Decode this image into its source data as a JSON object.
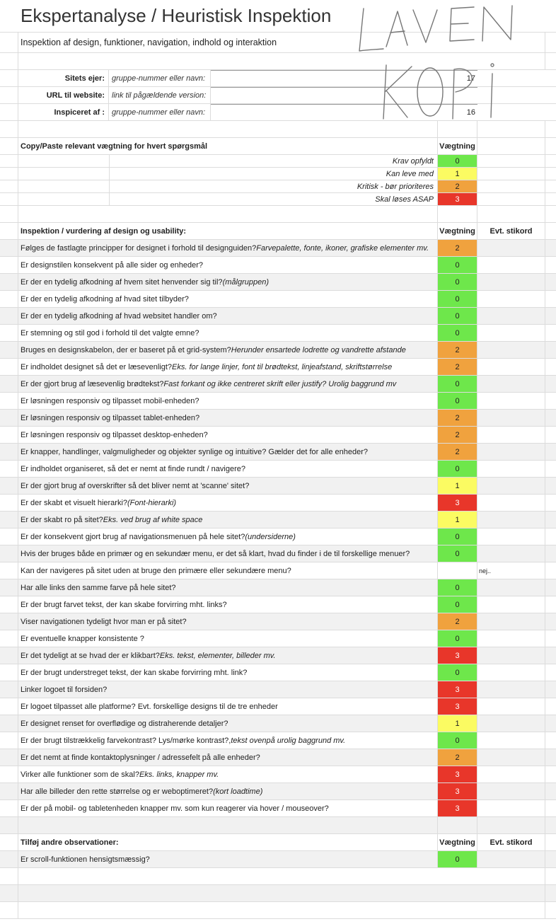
{
  "title": "Ekspertanalyse / Heuristisk Inspektion",
  "subtitle": "Inspektion af design, funktioner, navigation, indhold og interaktion",
  "handwriting_text": "LAV EN KOPI",
  "info": [
    {
      "label": "Sitets ejer:",
      "hint": "gruppe-nummer eller navn:",
      "value": "17"
    },
    {
      "label": "URL til website:",
      "hint": "link til pågældende version:",
      "value": ""
    },
    {
      "label": "Inspiceret af :",
      "hint": "gruppe-nummer eller navn:",
      "value": "16"
    }
  ],
  "weights_header": {
    "label": "Copy/Paste relevant vægtning  for hvert spørgsmål",
    "col": "Vægtning"
  },
  "legend": [
    {
      "label": "Krav opfyldt",
      "value": "0"
    },
    {
      "label": "Kan leve med",
      "value": "1"
    },
    {
      "label": "Kritisk - bør prioriteres",
      "value": "2"
    },
    {
      "label": "Skal løses ASAP",
      "value": "3"
    }
  ],
  "inspection_header": {
    "label": "Inspektion / vurdering af design og usability:",
    "col_weight": "Vægtning",
    "col_note": "Evt. stikord"
  },
  "questions": [
    {
      "text": "Følges de fastlagte principper for designet i forhold til designguiden?",
      "italic": "Farvepalette, fonte, ikoner, grafiske elementer mv.",
      "score": "2",
      "note": ""
    },
    {
      "text": "Er designstilen konsekvent på alle sider og enheder?",
      "italic": "",
      "score": "0",
      "note": ""
    },
    {
      "text": "Er der en tydelig afkodning af hvem sitet henvender sig til?",
      "italic": "(målgruppen)",
      "score": "0",
      "note": ""
    },
    {
      "text": "Er der en tydelig afkodning af hvad sitet tilbyder?",
      "italic": "",
      "score": "0",
      "note": ""
    },
    {
      "text": "Er der en tydelig afkodning af hvad websitet handler om?",
      "italic": "",
      "score": "0",
      "note": ""
    },
    {
      "text": "Er stemning og stil god i forhold til det valgte emne?",
      "italic": "",
      "score": "0",
      "note": ""
    },
    {
      "text": "Bruges en designskabelon, der er baseret på et grid-system?",
      "italic": "Herunder ensartede lodrette og vandrette afstande",
      "score": "2",
      "note": ""
    },
    {
      "text": "Er indholdet designet så det er læsevenligt?",
      "italic": "Eks. for lange linjer, font til brødtekst, linjeafstand, skriftstørrelse",
      "score": "2",
      "note": ""
    },
    {
      "text": "Er der gjort brug af læsevenlig brødtekst?",
      "italic": "Fast forkant og ikke centreret skrift eller justify? Urolig baggrund mv",
      "score": "0",
      "note": ""
    },
    {
      "text": "Er løsningen responsiv og tilpasset mobil-enheden?",
      "italic": "",
      "score": "0",
      "note": ""
    },
    {
      "text": "Er løsningen responsiv og tilpasset tablet-enheden?",
      "italic": "",
      "score": "2",
      "note": ""
    },
    {
      "text": "Er løsningen responsiv og tilpasset desktop-enheden?",
      "italic": "",
      "score": "2",
      "note": ""
    },
    {
      "text": "Er knapper, handlinger, valgmuligheder og objekter synlige og intuitive? Gælder det for alle enheder?",
      "italic": "",
      "score": "2",
      "note": ""
    },
    {
      "text": "Er indholdet organiseret, så det er nemt at finde rundt / navigere?",
      "italic": "",
      "score": "0",
      "note": ""
    },
    {
      "text": "Er der gjort brug af overskrifter så det bliver nemt at 'scanne' sitet?",
      "italic": "",
      "score": "1",
      "note": ""
    },
    {
      "text": "Er der skabt et visuelt hierarki?",
      "italic": "(Font-hierarki)",
      "score": "3",
      "note": ""
    },
    {
      "text": "Er der skabt ro på sitet?",
      "italic": "Eks. ved brug af white space",
      "score": "1",
      "note": ""
    },
    {
      "text": "Er der konsekvent gjort brug af navigationsmenuen på hele sitet?",
      "italic": "(undersiderne)",
      "score": "0",
      "note": ""
    },
    {
      "text": "Hvis der bruges både en primær og en sekundær menu, er det så klart, hvad du finder i de til forskellige menuer?",
      "italic": "",
      "score": "0",
      "note": ""
    },
    {
      "text": "Kan der navigeres på sitet uden at bruge den primære eller sekundære menu?",
      "italic": "",
      "score": "",
      "note": "nej.."
    },
    {
      "text": "Har alle links den samme farve på hele sitet?",
      "italic": "",
      "score": "0",
      "note": ""
    },
    {
      "text": "Er der brugt farvet tekst, der kan skabe forvirring mht. links?",
      "italic": "",
      "score": "0",
      "note": ""
    },
    {
      "text": "Viser navigationen tydeligt hvor man er på sitet?",
      "italic": "",
      "score": "2",
      "note": ""
    },
    {
      "text": "Er eventuelle knapper konsistente ?",
      "italic": "",
      "score": "0",
      "note": ""
    },
    {
      "text": "Er det tydeligt at se hvad der er klikbart?",
      "italic": "Eks. tekst, elementer, billeder mv.",
      "score": "3",
      "note": ""
    },
    {
      "text": "Er der brugt understreget tekst, der kan skabe forvirring mht. link?",
      "italic": "",
      "score": "0",
      "note": ""
    },
    {
      "text": "Linker logoet til forsiden?",
      "italic": "",
      "score": "3",
      "note": ""
    },
    {
      "text": "Er logoet tilpasset alle platforme? Evt. forskellige designs til de tre enheder",
      "italic": "",
      "score": "3",
      "note": ""
    },
    {
      "text": "Er designet renset for overflødige og distraherende detaljer?",
      "italic": "",
      "score": "1",
      "note": ""
    },
    {
      "text": "Er der brugt tilstrækkelig farvekontrast? Lys/mørke kontrast?,",
      "italic": "tekst ovenpå urolig baggrund mv.",
      "score": "0",
      "note": ""
    },
    {
      "text": "Er det nemt at finde kontaktoplysninger / adressefelt på alle enheder?",
      "italic": "",
      "score": "2",
      "note": ""
    },
    {
      "text": "Virker alle funktioner som de skal?",
      "italic": "Eks. links, knapper mv.",
      "score": "3",
      "note": ""
    },
    {
      "text": "Har alle billeder den rette størrelse og er weboptimeret?",
      "italic": "(kort loadtime)",
      "score": "3",
      "note": ""
    },
    {
      "text": "Er der på mobil- og tabletenheden knapper mv. som kun reagerer via hover / mouseover?",
      "italic": "",
      "score": "3",
      "note": ""
    }
  ],
  "other_header": {
    "label": "Tilføj  andre observationer:",
    "col_weight": "Vægtning",
    "col_note": "Evt. stikord"
  },
  "other": [
    {
      "text": "Er scroll-funktionen hensigtsmæssig?",
      "italic": "",
      "score": "0",
      "note": ""
    }
  ]
}
